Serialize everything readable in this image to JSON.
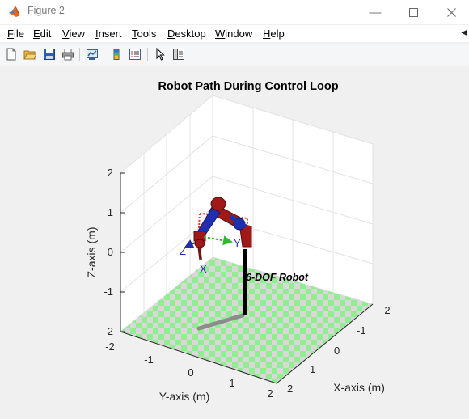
{
  "window": {
    "title": "Figure 2",
    "icon": "matlab-logo-icon",
    "controls": [
      "minimize-icon",
      "maximize-icon",
      "close-icon"
    ]
  },
  "menu": [
    {
      "key": "F",
      "rest": "ile"
    },
    {
      "key": "E",
      "rest": "dit"
    },
    {
      "key": "V",
      "rest": "iew"
    },
    {
      "key": "I",
      "rest": "nsert"
    },
    {
      "key": "T",
      "rest": "ools"
    },
    {
      "key": "D",
      "rest": "esktop"
    },
    {
      "key": "W",
      "rest": "indow"
    },
    {
      "key": "H",
      "rest": "elp"
    }
  ],
  "toolbar": [
    "new-figure-icon",
    "open-file-icon",
    "save-icon",
    "print-icon",
    "link-plot-icon",
    "colorbar-icon",
    "legend-icon",
    "pointer-icon",
    "property-inspector-icon"
  ],
  "plot": {
    "title": "Robot Path During Control Loop",
    "xlabel": "X-axis (m)",
    "ylabel": "Y-axis (m)",
    "zlabel": "Z-axis (m)",
    "x_ticks": [
      "-2",
      "-1",
      "0",
      "1",
      "2"
    ],
    "y_ticks": [
      "-2",
      "-1",
      "0",
      "1",
      "2"
    ],
    "z_ticks": [
      "-2",
      "-1",
      "0",
      "1",
      "2"
    ],
    "robot_label": "6-DOF Robot",
    "frame_labels": {
      "x": "X",
      "y": "Y",
      "z": "Z"
    },
    "colors": {
      "floor_light": "#90ee90",
      "floor_dark": "#d8d8d8",
      "robot_red": "#a01818",
      "robot_blue": "#1f2fb0",
      "path": "#ff2a2a"
    }
  }
}
